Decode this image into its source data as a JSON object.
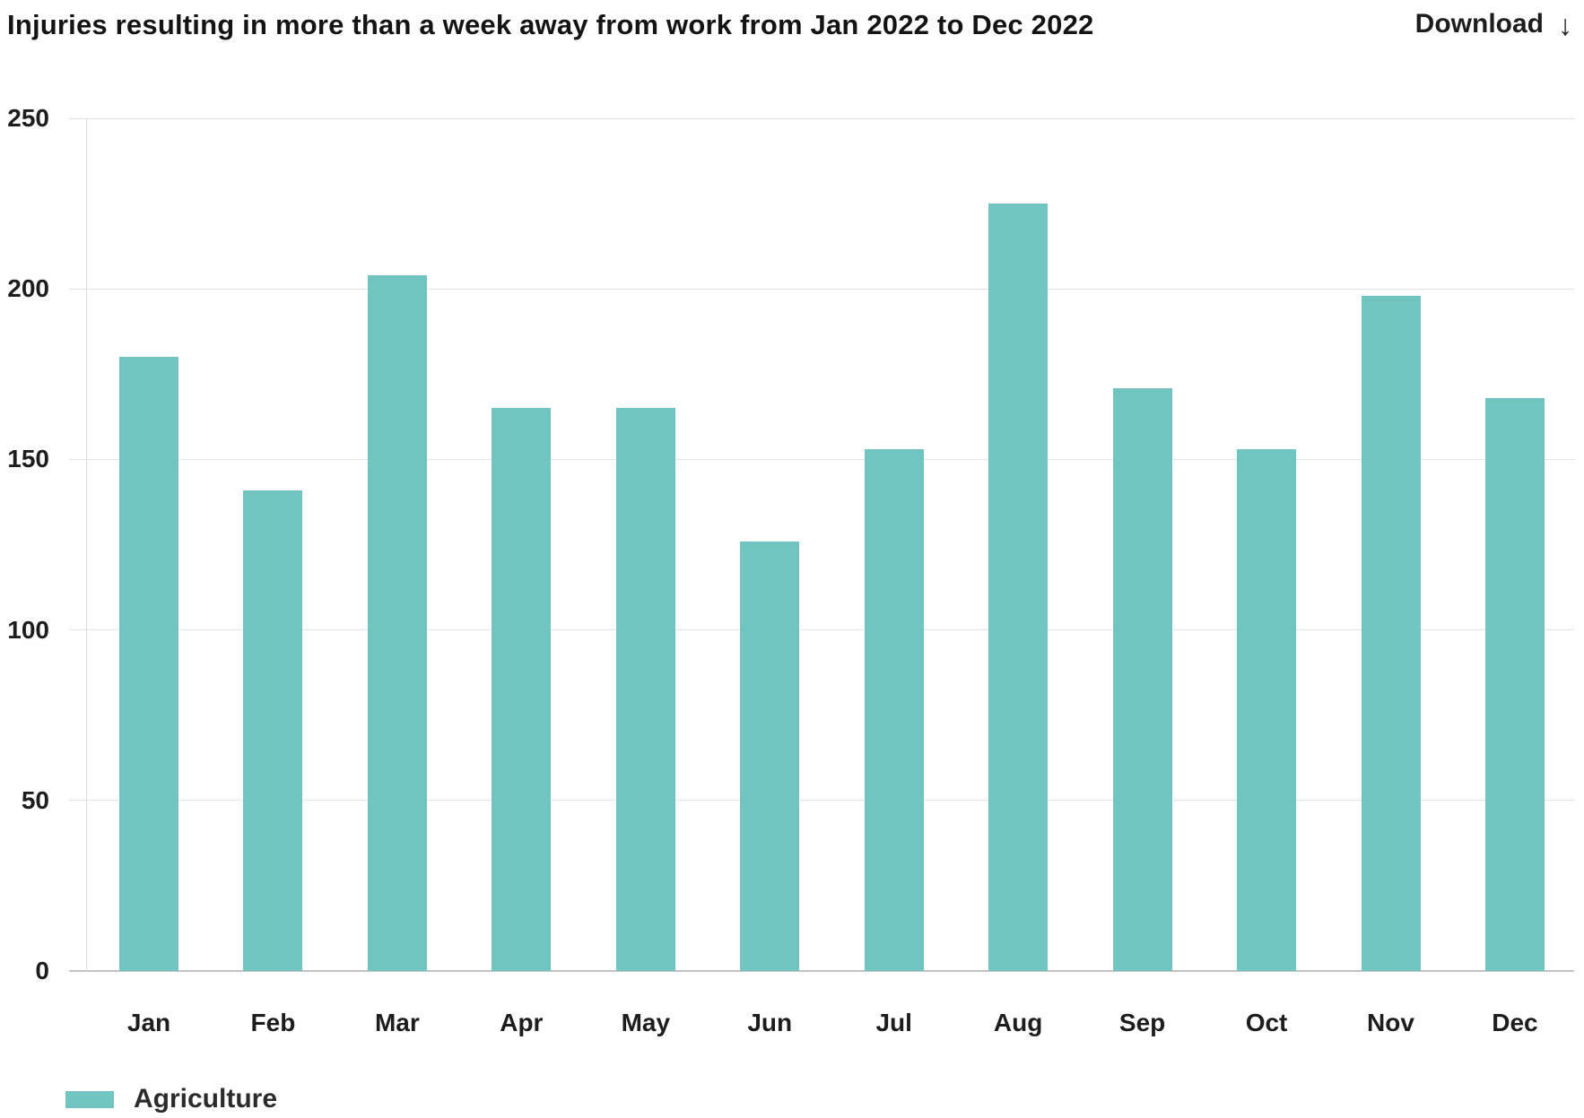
{
  "header": {
    "title": "Injuries resulting in more than a week away from work from Jan 2022 to Dec 2022",
    "download_label": "Download",
    "download_icon": "↓"
  },
  "chart_data": {
    "type": "bar",
    "title": "Injuries resulting in more than a week away from work from Jan 2022 to Dec 2022",
    "categories": [
      "Jan",
      "Feb",
      "Mar",
      "Apr",
      "May",
      "Jun",
      "Jul",
      "Aug",
      "Sep",
      "Oct",
      "Nov",
      "Dec"
    ],
    "series": [
      {
        "name": "Agriculture",
        "values": [
          180,
          141,
          204,
          165,
          165,
          126,
          153,
          225,
          171,
          153,
          198,
          168
        ]
      }
    ],
    "xlabel": "",
    "ylabel": "",
    "ylim": [
      0,
      250
    ],
    "yticks": [
      0,
      50,
      100,
      150,
      200,
      250
    ],
    "grid": "horizontal",
    "legend_position": "bottom-left",
    "bar_color": "#71c5c1"
  },
  "legend": {
    "items": [
      {
        "label": "Agriculture",
        "color": "#71c5c1"
      }
    ]
  },
  "colors": {
    "bar": "#71c5c1",
    "text": "#1d1d1d",
    "gridline": "#e4e4e4",
    "axis": "#c2c2c2",
    "background": "#ffffff"
  }
}
